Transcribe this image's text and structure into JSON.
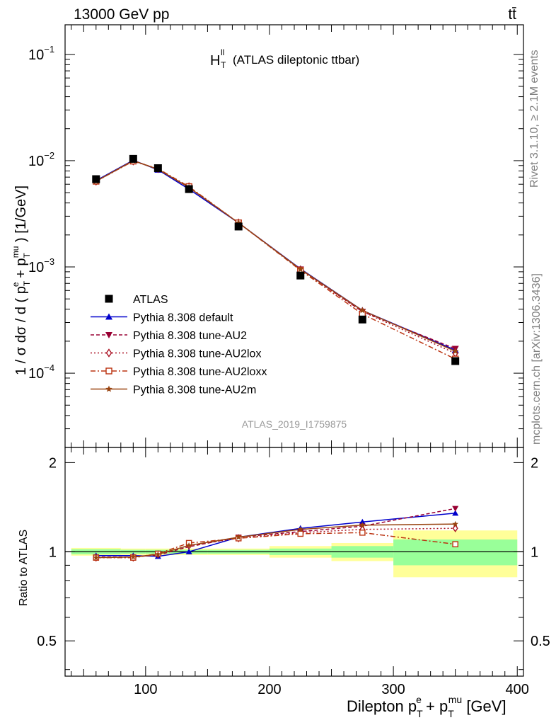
{
  "header": {
    "energy_label": "13000 GeV pp",
    "process_label": "tt̄"
  },
  "side": {
    "rivet_label": "Rivet 3.1.10, ≥ 2.1M events",
    "mcplots_label": "mcplots.cern.ch [arXiv:1306.3436]"
  },
  "colors": {
    "data": "#000000",
    "default": "#0000cc",
    "au2": "#990033",
    "au2lox": "#aa1122",
    "au2loxx": "#bb3311",
    "au2m": "#994411",
    "band_inner": "#99ff99",
    "band_outer": "#ffff99"
  },
  "chart_data": [
    {
      "type": "line",
      "title_main": "H",
      "title_sup": "ll",
      "title_sub": "T",
      "title_rest": "(ATLAS dileptonic ttbar)",
      "analysis_label": "ATLAS_2019_I1759875",
      "ylabel": "1 / σ  dσ / d ( p",
      "ylabel_e": "e",
      "ylabel_mid": " + p",
      "ylabel_mu": "mu",
      "ylabel_end": " ) [1/GeV]",
      "ylabel_T": "T",
      "yscale": "log",
      "ylim": [
        2e-05,
        0.19
      ],
      "xlim": [
        35,
        405
      ],
      "yticks": [
        {
          "value": 0.1,
          "base": "10",
          "exp": "−1"
        },
        {
          "value": 0.01,
          "base": "10",
          "exp": "−2"
        },
        {
          "value": 0.001,
          "base": "10",
          "exp": "−3"
        },
        {
          "value": 0.0001,
          "base": "10",
          "exp": "−4"
        }
      ],
      "x": [
        60,
        90,
        110,
        135,
        175,
        225,
        275,
        350
      ],
      "data_series": {
        "name": "ATLAS",
        "values": [
          0.0067,
          0.0104,
          0.0085,
          0.0054,
          0.0024,
          0.00083,
          0.00032,
          0.00013
        ]
      },
      "series": [
        {
          "name": "Pythia 8.308 default",
          "key": "default",
          "marker": "triangle-up",
          "dash": "",
          "values": [
            0.0065,
            0.0101,
            0.0082,
            0.0054,
            0.0026,
            0.00096,
            0.00039,
            0.000165
          ]
        },
        {
          "name": "Pythia 8.308 tune-AU2",
          "key": "au2",
          "marker": "triangle-down",
          "dash": "5,3",
          "values": [
            0.0064,
            0.01,
            0.0083,
            0.0056,
            0.0026,
            0.00095,
            0.00038,
            0.00017
          ]
        },
        {
          "name": "Pythia 8.308 tune-AU2lox",
          "key": "au2lox",
          "marker": "diamond",
          "dash": "2,3",
          "values": [
            0.0064,
            0.0099,
            0.0084,
            0.0057,
            0.0026,
            0.00094,
            0.00038,
            0.000154
          ]
        },
        {
          "name": "Pythia 8.308 tune-AU2loxx",
          "key": "au2loxx",
          "marker": "square-open",
          "dash": "7,3,2,3",
          "values": [
            0.0064,
            0.0099,
            0.0084,
            0.0057,
            0.0026,
            0.00093,
            0.00036,
            0.000136
          ]
        },
        {
          "name": "Pythia 8.308 tune-AU2m",
          "key": "au2m",
          "marker": "star",
          "dash": "",
          "values": [
            0.0064,
            0.01,
            0.0083,
            0.0056,
            0.0026,
            0.00095,
            0.00039,
            0.000161
          ]
        }
      ]
    },
    {
      "type": "line",
      "ylabel": "Ratio to ATLAS",
      "xlabel_main": "Dilepton p",
      "xlabel_e": "e",
      "xlabel_mid": " + p",
      "xlabel_mu": "mu",
      "xlabel_end": " [GeV]",
      "xlabel_T": "T",
      "ylim": [
        0.38,
        2.25
      ],
      "xlim": [
        35,
        405
      ],
      "yticks": [
        "0.5",
        "1",
        "2"
      ],
      "xticks": [
        "100",
        "200",
        "300",
        "400"
      ],
      "bands": [
        {
          "x0": 40,
          "x1": 80,
          "inner": 0.02,
          "outer": 0.03
        },
        {
          "x0": 80,
          "x1": 100,
          "inner": 0.015,
          "outer": 0.025
        },
        {
          "x0": 100,
          "x1": 120,
          "inner": 0.015,
          "outer": 0.025
        },
        {
          "x0": 120,
          "x1": 150,
          "inner": 0.015,
          "outer": 0.025
        },
        {
          "x0": 150,
          "x1": 200,
          "inner": 0.015,
          "outer": 0.025
        },
        {
          "x0": 200,
          "x1": 250,
          "inner": 0.025,
          "outer": 0.045
        },
        {
          "x0": 250,
          "x1": 300,
          "inner": 0.045,
          "outer": 0.07
        },
        {
          "x0": 300,
          "x1": 400,
          "inner": 0.1,
          "outer": 0.18
        }
      ],
      "x": [
        60,
        90,
        110,
        135,
        175,
        225,
        275,
        350
      ],
      "series": [
        {
          "name": "Pythia 8.308 default",
          "key": "default",
          "marker": "triangle-up",
          "dash": "",
          "values": [
            0.97,
            0.97,
            0.965,
            1.0,
            1.12,
            1.2,
            1.26,
            1.35
          ]
        },
        {
          "name": "Pythia 8.308 tune-AU2",
          "key": "au2",
          "marker": "triangle-down",
          "dash": "5,3",
          "values": [
            0.96,
            0.96,
            0.975,
            1.04,
            1.12,
            1.17,
            1.22,
            1.4
          ]
        },
        {
          "name": "Pythia 8.308 tune-AU2lox",
          "key": "au2lox",
          "marker": "diamond",
          "dash": "2,3",
          "values": [
            0.955,
            0.955,
            0.98,
            1.05,
            1.11,
            1.16,
            1.19,
            1.2
          ]
        },
        {
          "name": "Pythia 8.308 tune-AU2loxx",
          "key": "au2loxx",
          "marker": "square-open",
          "dash": "7,3,2,3",
          "values": [
            0.955,
            0.955,
            0.985,
            1.07,
            1.11,
            1.15,
            1.16,
            1.06
          ]
        },
        {
          "name": "Pythia 8.308 tune-AU2m",
          "key": "au2m",
          "marker": "star",
          "dash": "",
          "values": [
            0.955,
            0.96,
            0.98,
            1.05,
            1.12,
            1.19,
            1.23,
            1.24
          ]
        }
      ]
    }
  ]
}
